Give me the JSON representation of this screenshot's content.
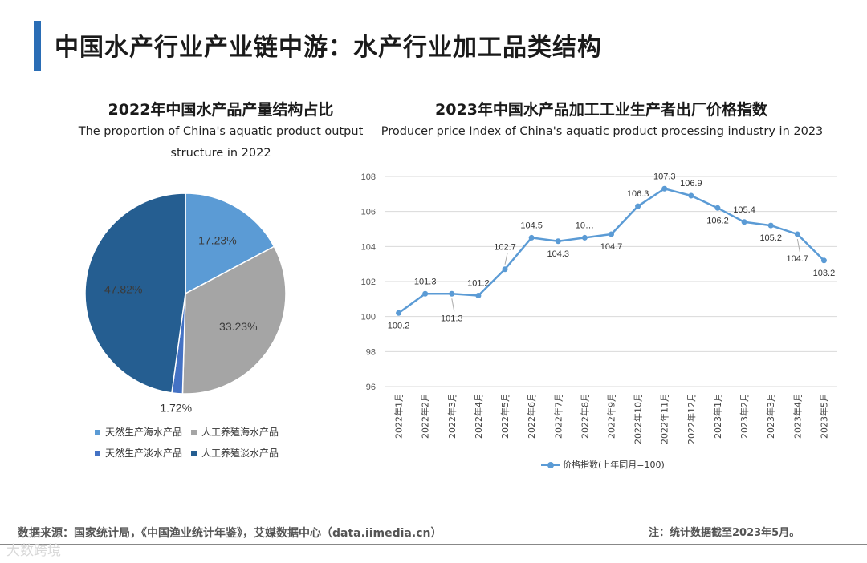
{
  "page_title": "中国水产行业产业链中游：水产行业加工品类结构",
  "pie": {
    "title": "2022年中国水产品产量结构占比",
    "subtitle": "The proportion of China's aquatic product output structure in 2022",
    "colors": {
      "s1": "#5b9bd5",
      "s2": "#a5a5a5",
      "s3": "#4472c4",
      "s4": "#255e91"
    }
  },
  "line": {
    "title": "2023年中国水产品加工工业生产者出厂价格指数",
    "subtitle": "Producer price Index of China's aquatic product processing industry in 2023",
    "legend_label": "价格指数(上年同月=100)",
    "color": "#5b9bd5"
  },
  "chart_data": [
    {
      "type": "pie",
      "title": "2022年中国水产品产量结构占比",
      "categories": [
        "天然生产海水产品",
        "人工养殖海水产品",
        "天然生产淡水产品",
        "人工养殖淡水产品"
      ],
      "values": [
        17.23,
        33.23,
        1.72,
        47.82
      ],
      "labels": [
        "17.23%",
        "33.23%",
        "1.72%",
        "47.82%"
      ],
      "legend_position": "bottom"
    },
    {
      "type": "line",
      "title": "2023年中国水产品加工工业生产者出厂价格指数",
      "x": [
        "2022年1月",
        "2022年2月",
        "2022年3月",
        "2022年4月",
        "2022年5月",
        "2022年6月",
        "2022年7月",
        "2022年8月",
        "2022年9月",
        "2022年10月",
        "2022年11月",
        "2022年12月",
        "2023年1月",
        "2023年2月",
        "2023年3月",
        "2023年4月",
        "2023年5月"
      ],
      "series": [
        {
          "name": "价格指数(上年同月=100)",
          "values": [
            100.2,
            101.3,
            101.3,
            101.2,
            102.7,
            104.5,
            104.3,
            104.5,
            104.7,
            106.3,
            107.3,
            106.9,
            106.2,
            105.4,
            105.2,
            104.7,
            103.2
          ]
        }
      ],
      "data_labels": [
        "100.2",
        "101.3",
        "101.3",
        "101.2",
        "102.7",
        "104.5",
        "104.3",
        "10…",
        "104.7",
        "106.3",
        "107.3",
        "106.9",
        "106.2",
        "105.4",
        "105.2",
        "104.7",
        "103.2"
      ],
      "ylim": [
        96,
        108
      ],
      "yticks": [
        "96",
        "98",
        "100",
        "102",
        "104",
        "106",
        "108"
      ],
      "grid": true,
      "legend_position": "bottom"
    }
  ],
  "footer": {
    "source": "数据来源：国家统计局，《中国渔业统计年鉴》，艾媒数据中心（data.iimedia.cn）",
    "note": "注：统计数据截至2023年5月。",
    "watermark": "大数跨境"
  }
}
